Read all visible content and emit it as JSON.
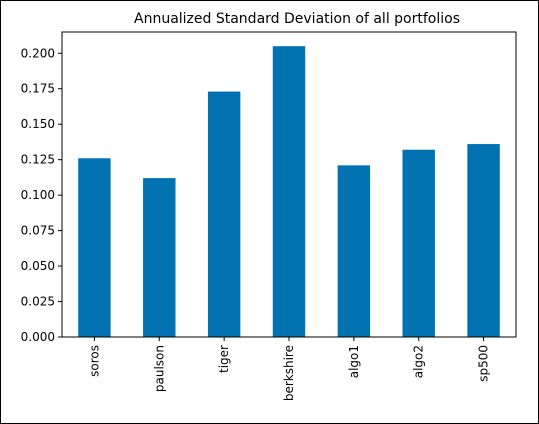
{
  "chart_data": {
    "type": "bar",
    "title": "Annualized Standard Deviation of all portfolios",
    "xlabel": "",
    "ylabel": "",
    "categories": [
      "soros",
      "paulson",
      "tiger",
      "berkshire",
      "algo1",
      "algo2",
      "sp500"
    ],
    "values": [
      0.126,
      0.112,
      0.173,
      0.205,
      0.121,
      0.132,
      0.136
    ],
    "ylim": [
      0,
      0.215
    ],
    "yticks": [
      "0.000",
      "0.025",
      "0.050",
      "0.075",
      "0.100",
      "0.125",
      "0.150",
      "0.175",
      "0.200"
    ],
    "grid": false,
    "legend": "none",
    "bar_color": "#0072b2"
  }
}
